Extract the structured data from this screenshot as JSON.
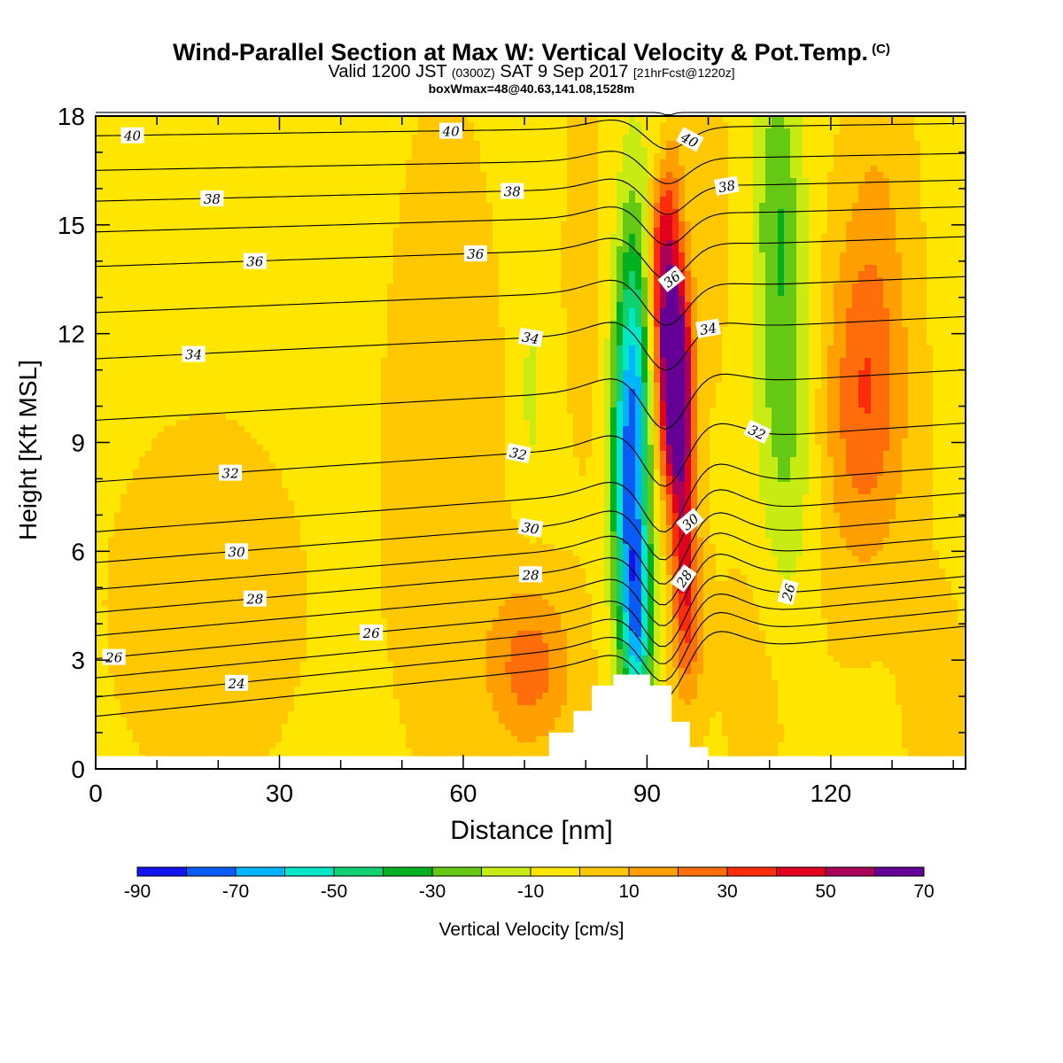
{
  "header": {
    "title": "Wind-Parallel Section at Max W: Vertical Velocity & Pot.Temp.",
    "copyright": "(C)",
    "valid_a": "Valid 1200 JST",
    "valid_utc": "(0300Z)",
    "valid_b": "SAT 9 Sep 2017",
    "forecast": "[21hrFcst@1220z]",
    "box": "boxWmax=48@40.63,141.08,1528m"
  },
  "chart_data": {
    "type": "heatmap",
    "xlabel": "Distance [nm]",
    "ylabel": "Height [Kft MSL]",
    "xlim": [
      0,
      142
    ],
    "ylim": [
      0,
      18
    ],
    "xticks": [
      0,
      30,
      60,
      90,
      120
    ],
    "yticks": [
      0,
      3,
      6,
      9,
      12,
      15,
      18
    ],
    "colorbar": {
      "label": "Vertical Velocity [cm/s]",
      "ticks": [
        -90,
        -70,
        -50,
        -30,
        -10,
        10,
        30,
        50,
        70
      ],
      "bins": [
        {
          "min": -90,
          "max": -80,
          "color": "#1414f0"
        },
        {
          "min": -80,
          "max": -70,
          "color": "#0a5af5"
        },
        {
          "min": -70,
          "max": -60,
          "color": "#00b4ff"
        },
        {
          "min": -60,
          "max": -50,
          "color": "#00e6c8"
        },
        {
          "min": -50,
          "max": -40,
          "color": "#10d070"
        },
        {
          "min": -40,
          "max": -30,
          "color": "#00b020"
        },
        {
          "min": -30,
          "max": -20,
          "color": "#64c814"
        },
        {
          "min": -20,
          "max": -10,
          "color": "#c8eb14"
        },
        {
          "min": -10,
          "max": 0,
          "color": "#ffe600"
        },
        {
          "min": 0,
          "max": 10,
          "color": "#ffc800"
        },
        {
          "min": 10,
          "max": 20,
          "color": "#ffa000"
        },
        {
          "min": 20,
          "max": 30,
          "color": "#ff6e0a"
        },
        {
          "min": 30,
          "max": 40,
          "color": "#ff2d0a"
        },
        {
          "min": 40,
          "max": 50,
          "color": "#e1001e"
        },
        {
          "min": 50,
          "max": 60,
          "color": "#aa005a"
        },
        {
          "min": 60,
          "max": 70,
          "color": "#640096"
        }
      ]
    },
    "wfield": [
      {
        "x": 95,
        "y": 10.5,
        "sx": 1.6,
        "sy": 1.8,
        "a": 80
      },
      {
        "x": 93.5,
        "y": 12.5,
        "sx": 1.9,
        "sy": 3.2,
        "a": 40
      },
      {
        "x": 92,
        "y": 15.5,
        "sx": 1.8,
        "sy": 3.0,
        "a": 38
      },
      {
        "x": 96,
        "y": 6.5,
        "sx": 1.4,
        "sy": 2.2,
        "a": 35
      },
      {
        "x": 97,
        "y": 4.0,
        "sx": 1.8,
        "sy": 1.8,
        "a": 22
      },
      {
        "x": 88.5,
        "y": 12.0,
        "sx": 2.4,
        "sy": 3.5,
        "a": -34
      },
      {
        "x": 87,
        "y": 8.0,
        "sx": 2.0,
        "sy": 3.2,
        "a": -55
      },
      {
        "x": 88.5,
        "y": 4.0,
        "sx": 1.8,
        "sy": 2.0,
        "a": -50
      },
      {
        "x": 92,
        "y": 17.3,
        "sx": 1.6,
        "sy": 1.6,
        "a": -35
      },
      {
        "x": 113,
        "y": 8.0,
        "sx": 3.5,
        "sy": 4.0,
        "a": -15
      },
      {
        "x": 112,
        "y": 13.0,
        "sx": 3.0,
        "sy": 3.5,
        "a": -16
      },
      {
        "x": 111,
        "y": 16.5,
        "sx": 2.5,
        "sy": 2.5,
        "a": -14
      },
      {
        "x": 71,
        "y": 10.5,
        "sx": 0.8,
        "sy": 1.8,
        "a": -13
      },
      {
        "x": 71,
        "y": 2.8,
        "sx": 5.0,
        "sy": 1.6,
        "a": 28
      },
      {
        "x": 126,
        "y": 11.3,
        "sx": 4.5,
        "sy": 3.0,
        "a": 24
      },
      {
        "x": 125,
        "y": 8.5,
        "sx": 5.5,
        "sy": 3.0,
        "a": 13
      },
      {
        "x": 57,
        "y": 9.0,
        "sx": 7.0,
        "sy": 7.0,
        "a": 8
      },
      {
        "x": 18,
        "y": 4.5,
        "sx": 14.0,
        "sy": 4.5,
        "a": 6
      },
      {
        "x": 110,
        "y": 3.0,
        "sx": 6.0,
        "sy": 3.0,
        "a": 8
      },
      {
        "x": 80,
        "y": 14.0,
        "sx": 3.0,
        "sy": 5.0,
        "a": 6
      },
      {
        "x": 100,
        "y": 15.0,
        "sx": 2.5,
        "sy": 3.5,
        "a": 8
      },
      {
        "x": 128,
        "y": 16.5,
        "sx": 4.0,
        "sy": 2.5,
        "a": 8
      },
      {
        "x": 137,
        "y": 2.0,
        "sx": 4.0,
        "sy": 2.5,
        "a": 7
      }
    ],
    "terrain": [
      {
        "x": 71,
        "h": 0.3
      },
      {
        "x": 74,
        "h": 1.0
      },
      {
        "x": 78,
        "h": 1.6
      },
      {
        "x": 81,
        "h": 2.3
      },
      {
        "x": 84.5,
        "h": 2.6
      },
      {
        "x": 90.5,
        "h": 2.3
      },
      {
        "x": 94,
        "h": 1.3
      },
      {
        "x": 97,
        "h": 0.6
      },
      {
        "x": 100,
        "h": 0.0
      }
    ],
    "theta": {
      "levels": [
        23,
        24,
        25,
        26,
        27,
        28,
        29,
        30,
        31,
        32,
        33,
        34,
        35,
        36,
        37,
        38,
        39,
        40,
        41
      ],
      "height_kft": [
        2.5,
        3.0,
        3.5,
        4.0,
        4.6,
        5.2,
        5.8,
        6.5,
        7.3,
        8.6,
        10.2,
        11.8,
        13.0,
        14.2,
        15.1,
        15.9,
        16.7,
        17.6,
        18.5
      ],
      "perturbation": [
        {
          "x": 93,
          "y": 6,
          "sx": 3.5,
          "sy": 9,
          "a": -1.6
        },
        {
          "x": 100,
          "y": 5,
          "sx": 5,
          "sy": 4,
          "a": 0.8
        },
        {
          "x": 86,
          "y": 10,
          "sx": 5,
          "sy": 9,
          "a": 0.4
        }
      ],
      "labels": [
        {
          "text": "40",
          "x": 6,
          "level": 40,
          "angle": 0
        },
        {
          "text": "38",
          "x": 19,
          "level": 38,
          "angle": 0
        },
        {
          "text": "36",
          "x": 26,
          "level": 36,
          "angle": 0
        },
        {
          "text": "34",
          "x": 16,
          "level": 34,
          "angle": 0
        },
        {
          "text": "32",
          "x": 22,
          "level": 32,
          "angle": 0
        },
        {
          "text": "30",
          "x": 23,
          "level": 30,
          "angle": 0
        },
        {
          "text": "28",
          "x": 26,
          "level": 28,
          "angle": 0
        },
        {
          "text": "26",
          "x": 3,
          "level": 26,
          "angle": 0
        },
        {
          "text": "24",
          "x": 23,
          "level": 24,
          "angle": 0
        },
        {
          "text": "40",
          "x": 58,
          "level": 40,
          "angle": 0
        },
        {
          "text": "38",
          "x": 68,
          "level": 38,
          "angle": 0
        },
        {
          "text": "36",
          "x": 62,
          "level": 36,
          "angle": 0
        },
        {
          "text": "34",
          "x": 71,
          "level": 34,
          "angle": 10
        },
        {
          "text": "32",
          "x": 69,
          "level": 32,
          "angle": 12
        },
        {
          "text": "30",
          "x": 71,
          "level": 30,
          "angle": 10
        },
        {
          "text": "28",
          "x": 71,
          "level": 28,
          "angle": 0
        },
        {
          "text": "26",
          "x": 45,
          "level": 26,
          "angle": 0
        },
        {
          "text": "40",
          "x": 97,
          "level": 40,
          "angle": 28
        },
        {
          "text": "38",
          "x": 103,
          "level": 38,
          "angle": -10
        },
        {
          "text": "36",
          "x": 94,
          "level": 36,
          "angle": -38
        },
        {
          "text": "34",
          "x": 100,
          "level": 34,
          "angle": -10
        },
        {
          "text": "32",
          "x": 108,
          "level": 32,
          "angle": 25
        },
        {
          "text": "30",
          "x": 97,
          "level": 30,
          "angle": -40
        },
        {
          "text": "28",
          "x": 96,
          "level": 28,
          "angle": -55
        },
        {
          "text": "26",
          "x": 113,
          "level": 26,
          "angle": -75
        }
      ]
    }
  }
}
